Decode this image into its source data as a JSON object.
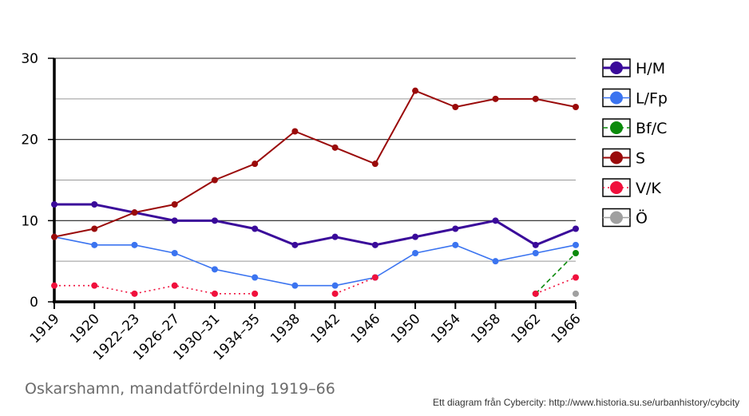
{
  "chart_data": {
    "type": "line",
    "title": "Oskarshamn, mandatfördelning 1919–66",
    "credit": "Ett diagram från Cybercity: http://www.historia.su.se/urbanhistory/cybcity",
    "categories": [
      "1919",
      "1920",
      "1922–23",
      "1926–27",
      "1930–31",
      "1934–35",
      "1938",
      "1942",
      "1946",
      "1950",
      "1954",
      "1958",
      "1962",
      "1966"
    ],
    "ylim": [
      0,
      30
    ],
    "yticks": [
      0,
      10,
      20,
      30
    ],
    "grid": true,
    "legend_position": "right",
    "series": [
      {
        "name": "H/M",
        "color": "#3a0a9a",
        "style": "solid",
        "width": 3,
        "values": [
          12,
          12,
          11,
          10,
          10,
          9,
          7,
          8,
          7,
          8,
          9,
          10,
          7,
          9
        ]
      },
      {
        "name": "L/Fp",
        "color": "#3b74f0",
        "style": "solid",
        "width": 1.6,
        "values": [
          8,
          7,
          7,
          6,
          4,
          3,
          2,
          2,
          3,
          6,
          7,
          5,
          6,
          7
        ]
      },
      {
        "name": "Bf/C",
        "color": "#0b8a0b",
        "style": "dashed",
        "width": 1.6,
        "values": [
          null,
          null,
          null,
          null,
          null,
          null,
          null,
          null,
          null,
          null,
          null,
          null,
          1,
          6
        ]
      },
      {
        "name": "S",
        "color": "#9a0a0a",
        "style": "solid",
        "width": 2,
        "values": [
          8,
          9,
          11,
          12,
          15,
          17,
          21,
          19,
          17,
          26,
          24,
          25,
          25,
          24
        ]
      },
      {
        "name": "V/K",
        "color": "#f0103c",
        "style": "dotted",
        "width": 1.6,
        "values": [
          2,
          2,
          1,
          2,
          1,
          1,
          null,
          1,
          3,
          null,
          null,
          null,
          1,
          3
        ]
      },
      {
        "name": "Ö",
        "color": "#a0a0a0",
        "style": "solid",
        "width": 1.6,
        "values": [
          null,
          null,
          null,
          null,
          null,
          null,
          null,
          null,
          null,
          null,
          null,
          null,
          null,
          1
        ]
      }
    ]
  }
}
